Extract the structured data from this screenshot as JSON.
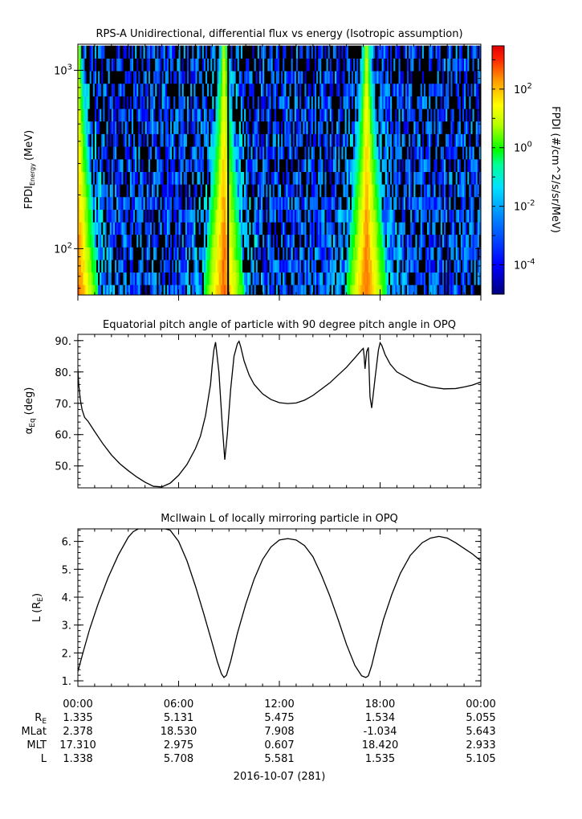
{
  "chart_data": [
    {
      "type": "heatmap",
      "title": "RPS-A Unidirectional, differential flux vs energy (Isotropic assumption)",
      "ylabel_main": "FPDI",
      "ylabel_sub": "Energy",
      "ylabel_unit": "(MeV)",
      "yscale": "log",
      "ylim": [
        55,
        1400
      ],
      "yticks": [
        {
          "value": 100,
          "base": "10",
          "exp": "2"
        },
        {
          "value": 1000,
          "base": "10",
          "exp": "3"
        }
      ],
      "energy_channels_mev": [
        58,
        68,
        80,
        94,
        111,
        130,
        153,
        180,
        212,
        249,
        293,
        345,
        406,
        478,
        562,
        661,
        778,
        915,
        1077,
        1267
      ],
      "colorbar": {
        "label": "FPDI (#/cm^2/s/sr/MeV)",
        "scale": "log",
        "range": [
          1e-05,
          3000
        ],
        "ticks": [
          {
            "value": 0.0001,
            "base": "10",
            "exp": "-4"
          },
          {
            "value": 0.01,
            "base": "10",
            "exp": "-2"
          },
          {
            "value": 1,
            "base": "10",
            "exp": "0"
          },
          {
            "value": 100,
            "base": "10",
            "exp": "2"
          }
        ]
      },
      "features": {
        "belt_crossings_hours": [
          0.0,
          8.7,
          17.2
        ],
        "data_gap_hours": [
          8.95,
          9.0
        ]
      }
    },
    {
      "type": "line",
      "title": "Equatorial pitch angle of particle with 90 degree pitch angle in OPQ",
      "ylabel_main": "α",
      "ylabel_sub": "Eq",
      "ylabel_unit": "(deg)",
      "ylim": [
        43,
        92
      ],
      "yticks": [
        50,
        60,
        70,
        80,
        90
      ],
      "series": [
        {
          "x": [
            0,
            0.05,
            0.15,
            0.25,
            0.4,
            0.6,
            1.0,
            1.5,
            2.0,
            2.5,
            3.0,
            3.5,
            4.0,
            4.5,
            5.0,
            5.5,
            6.0,
            6.5,
            7.0,
            7.3,
            7.6,
            7.9,
            8.0,
            8.1,
            8.2,
            8.4,
            8.6,
            8.75,
            8.9,
            9.1,
            9.3,
            9.5,
            9.6,
            9.7,
            9.9,
            10.2,
            10.5,
            11.0,
            11.5,
            12.0,
            12.5,
            13.0,
            13.5,
            14.0,
            15.0,
            16.0,
            16.5,
            16.9,
            17.0,
            17.05,
            17.1,
            17.2,
            17.3,
            17.4,
            17.5,
            17.7,
            17.9,
            18.0,
            18.1,
            18.3,
            18.6,
            19.0,
            20.0,
            21.0,
            21.8,
            22.5,
            23.0,
            23.5,
            24.0
          ],
          "y": [
            81.0,
            76.0,
            71.0,
            68.0,
            65.5,
            64.3,
            61.0,
            57.0,
            53.5,
            50.7,
            48.5,
            46.5,
            44.8,
            43.5,
            43.3,
            44.5,
            47.0,
            50.5,
            55.5,
            59.5,
            66.0,
            76.0,
            82.0,
            87.0,
            89.5,
            80.0,
            63.0,
            52.0,
            60.0,
            74.5,
            85.0,
            89.0,
            89.8,
            88.0,
            83.5,
            79.0,
            76.0,
            73.0,
            71.2,
            70.2,
            69.9,
            70.1,
            71.0,
            72.5,
            76.5,
            81.5,
            84.5,
            87.0,
            87.5,
            85.0,
            81.0,
            86.5,
            87.8,
            72.0,
            68.5,
            78.0,
            87.0,
            89.3,
            88.5,
            85.5,
            82.5,
            80.0,
            77.0,
            75.2,
            74.6,
            74.7,
            75.2,
            75.8,
            76.8
          ]
        }
      ]
    },
    {
      "type": "line",
      "title": "McIlwain L of locally mirroring particle in OPQ",
      "ylabel_main": "L (R",
      "ylabel_sub": "E",
      "ylabel_unit": ")",
      "ylim": [
        0.8,
        6.45
      ],
      "yticks": [
        1,
        2,
        3,
        4,
        5,
        6
      ],
      "series": [
        {
          "x": [
            0,
            0.3,
            0.7,
            1.2,
            1.8,
            2.4,
            3.0,
            3.3,
            3.6,
            4.3,
            4.9,
            5.2,
            5.5,
            6.0,
            6.5,
            7.0,
            7.5,
            8.0,
            8.3,
            8.55,
            8.7,
            8.85,
            9.1,
            9.5,
            10.0,
            10.5,
            11.0,
            11.5,
            12.0,
            12.5,
            13.0,
            13.5,
            14.0,
            14.5,
            15.0,
            15.5,
            16.0,
            16.5,
            16.9,
            17.15,
            17.3,
            17.5,
            17.8,
            18.2,
            18.7,
            19.2,
            19.8,
            20.5,
            21.0,
            21.5,
            22.0,
            22.5,
            23.0,
            23.5,
            24.0
          ],
          "y": [
            1.33,
            2.0,
            2.85,
            3.75,
            4.7,
            5.5,
            6.15,
            6.35,
            6.45,
            6.45,
            6.45,
            6.45,
            6.4,
            6.0,
            5.3,
            4.4,
            3.4,
            2.35,
            1.7,
            1.25,
            1.12,
            1.2,
            1.7,
            2.7,
            3.75,
            4.65,
            5.35,
            5.8,
            6.05,
            6.1,
            6.05,
            5.85,
            5.45,
            4.8,
            4.05,
            3.2,
            2.3,
            1.55,
            1.18,
            1.12,
            1.18,
            1.55,
            2.3,
            3.2,
            4.1,
            4.85,
            5.5,
            5.95,
            6.12,
            6.18,
            6.12,
            5.95,
            5.75,
            5.55,
            5.3
          ]
        }
      ]
    }
  ],
  "xaxis": {
    "tick_labels": [
      "00:00",
      "06:00",
      "12:00",
      "18:00",
      "00:00"
    ],
    "tick_hours": [
      0,
      6,
      12,
      18,
      24
    ],
    "minor_step_hours": 1,
    "range_hours": [
      0,
      24
    ],
    "date_label": "2016-10-07 (281)"
  },
  "ephemeris": {
    "rows": [
      {
        "label": "R",
        "label_sub": "E",
        "values": [
          "1.335",
          "5.131",
          "5.475",
          "1.534",
          "5.055"
        ]
      },
      {
        "label": "MLat",
        "label_sub": "",
        "values": [
          "2.378",
          "18.530",
          "7.908",
          "-1.034",
          "5.643"
        ]
      },
      {
        "label": "MLT",
        "label_sub": "",
        "values": [
          "17.310",
          "2.975",
          "0.607",
          "18.420",
          "2.933"
        ]
      },
      {
        "label": "L",
        "label_sub": "",
        "values": [
          "1.338",
          "5.708",
          "5.581",
          "1.535",
          "5.105"
        ]
      }
    ]
  }
}
